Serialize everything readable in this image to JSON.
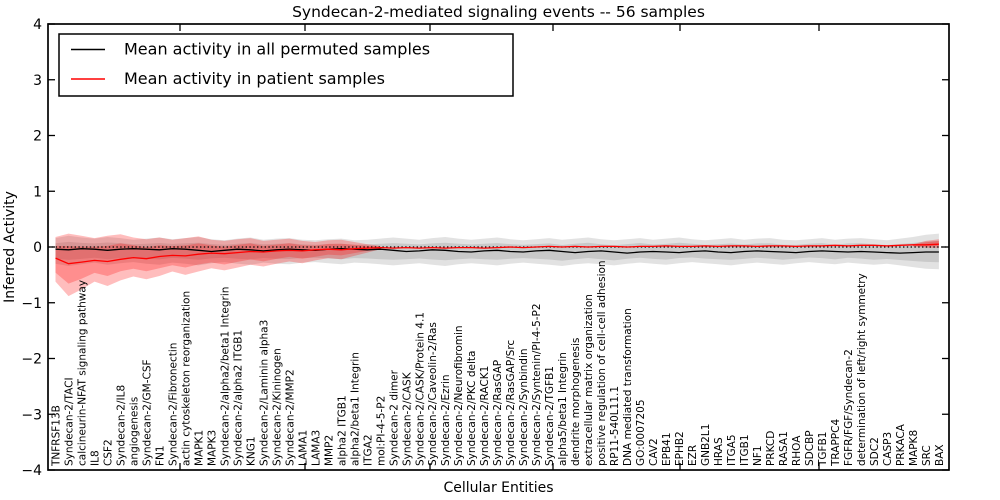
{
  "figure": {
    "title": "Syndecan-2-mediated signaling events -- 56 samples",
    "xlabel": "Cellular Entities",
    "ylabel": "Inferred Activity"
  },
  "chart_data": {
    "type": "line",
    "title": "Syndecan-2-mediated signaling events -- 56 samples",
    "xlabel": "Cellular Entities",
    "ylabel": "Inferred Activity",
    "ylim": [
      -4,
      4
    ],
    "yticks": [
      "4",
      "3",
      "2",
      "1",
      "0",
      "−1",
      "−2",
      "−3",
      "−4"
    ],
    "ytick_values": [
      4,
      3,
      2,
      1,
      0,
      -1,
      -2,
      -3,
      -4
    ],
    "grid": false,
    "legend_position": "upper-left",
    "zero_line": 0,
    "categories": [
      "TNFRSF13B",
      "Syndecan-2/TACI",
      "calcineurin-NFAT signaling pathway",
      "IL8",
      "CSF2",
      "Syndecan-2/IL8",
      "angiogenesis",
      "Syndecan-2/GM-CSF",
      "FN1",
      "Syndecan-2/Fibronectin",
      "actin cytoskeleton reorganization",
      "MAPK1",
      "MAPK3",
      "Syndecan-2/alpha2/beta1 Integrin",
      "Syndecan-2/alpha2 ITGB1",
      "KNG1",
      "Syndecan-2/Laminin alpha3",
      "Syndecan-2/Kininogen",
      "Syndecan-2/MMP2",
      "LAMA1",
      "LAMA3",
      "MMP2",
      "alpha2 ITGB1",
      "alpha2/beta1 Integrin",
      "ITGA2",
      "mol:PI-4-5-P2",
      "Syndecan-2 dimer",
      "Syndecan-2/CASK",
      "Syndecan-2/CASK/Protein 4.1",
      "Syndecan-2/Caveolin-2/Ras",
      "Syndecan-2/Ezrin",
      "Syndecan-2/Neurofibromin",
      "Syndecan-2/PKC delta",
      "Syndecan-2/RACK1",
      "Syndecan-2/RasGAP",
      "Syndecan-2/RasGAP/Src",
      "Syndecan-2/Synbindin",
      "Syndecan-2/Syntenin/PI-4-5-P2",
      "Syndecan-2/TGFB1",
      "alpha5/beta1 Integrin",
      "dendrite morphogenesis",
      "extracellular matrix organization",
      "positive regulation of cell-cell adhesion",
      "RP11-540L11.1",
      "DNA mediated transformation",
      "GO:0007205",
      "CAV2",
      "EPB41",
      "EPHB2",
      "EZR",
      "GNB2L1",
      "HRAS",
      "ITGA5",
      "ITGB1",
      "NF1",
      "PRKCD",
      "RASA1",
      "RHOA",
      "SDCBP",
      "TGFB1",
      "TRAPPC4",
      "FGFR/FGF/Syndecan-2",
      "determination of left/right symmetry",
      "SDC2",
      "CASP3",
      "PRKACA",
      "MAPK8",
      "SRC",
      "BAX"
    ],
    "series": [
      {
        "name": "permuted",
        "label": "Mean activity in all permuted samples",
        "color": "#000000",
        "values": [
          -0.04,
          -0.05,
          -0.03,
          -0.04,
          -0.06,
          -0.04,
          -0.03,
          -0.04,
          -0.05,
          -0.03,
          -0.04,
          -0.06,
          -0.08,
          -0.06,
          -0.04,
          -0.05,
          -0.07,
          -0.05,
          -0.04,
          -0.05,
          -0.06,
          -0.04,
          -0.03,
          -0.04,
          -0.05,
          -0.04,
          -0.06,
          -0.08,
          -0.07,
          -0.05,
          -0.06,
          -0.08,
          -0.09,
          -0.07,
          -0.06,
          -0.08,
          -0.09,
          -0.07,
          -0.06,
          -0.08,
          -0.1,
          -0.08,
          -0.07,
          -0.09,
          -0.11,
          -0.09,
          -0.08,
          -0.09,
          -0.1,
          -0.08,
          -0.07,
          -0.09,
          -0.1,
          -0.08,
          -0.07,
          -0.08,
          -0.09,
          -0.1,
          -0.08,
          -0.07,
          -0.08,
          -0.09,
          -0.08,
          -0.09,
          -0.1,
          -0.11,
          -0.1,
          -0.09,
          -0.09
        ]
      },
      {
        "name": "patient",
        "label": "Mean activity in patient samples",
        "color": "#ff0000",
        "values": [
          -0.2,
          -0.3,
          -0.27,
          -0.24,
          -0.26,
          -0.22,
          -0.19,
          -0.21,
          -0.17,
          -0.15,
          -0.16,
          -0.13,
          -0.11,
          -0.12,
          -0.1,
          -0.08,
          -0.09,
          -0.07,
          -0.06,
          -0.07,
          -0.05,
          -0.04,
          -0.05,
          -0.03,
          -0.02,
          -0.01,
          -0.02,
          -0.01,
          -0.02,
          -0.01,
          -0.02,
          -0.01,
          -0.01,
          -0.02,
          -0.01,
          0.0,
          -0.01,
          0.0,
          0.01,
          0.0,
          0.01,
          0.0,
          0.01,
          0.01,
          0.0,
          0.01,
          0.01,
          0.02,
          0.01,
          0.01,
          0.02,
          0.01,
          0.02,
          0.02,
          0.01,
          0.02,
          0.02,
          0.01,
          0.02,
          0.02,
          0.03,
          0.02,
          0.03,
          0.03,
          0.02,
          0.03,
          0.04,
          0.04,
          0.05
        ]
      }
    ],
    "bands": [
      {
        "name": "permuted-band",
        "color": "#000000",
        "opacity": 0.115,
        "start": 0,
        "upper": [
          0.16,
          0.2,
          0.17,
          0.15,
          0.18,
          0.16,
          0.13,
          0.15,
          0.17,
          0.14,
          0.16,
          0.18,
          0.14,
          0.12,
          0.15,
          0.17,
          0.13,
          0.15,
          0.16,
          0.13,
          0.12,
          0.14,
          0.15,
          0.12,
          0.13,
          0.15,
          0.17,
          0.15,
          0.13,
          0.16,
          0.18,
          0.15,
          0.13,
          0.15,
          0.17,
          0.14,
          0.12,
          0.14,
          0.16,
          0.13,
          0.15,
          0.17,
          0.14,
          0.12,
          0.14,
          0.16,
          0.13,
          0.15,
          0.17,
          0.14,
          0.12,
          0.14,
          0.16,
          0.13,
          0.15,
          0.16,
          0.13,
          0.12,
          0.14,
          0.16,
          0.13,
          0.15,
          0.16,
          0.14,
          0.12,
          0.15,
          0.18,
          0.22,
          0.24
        ],
        "lower": [
          -0.3,
          -0.34,
          -0.31,
          -0.28,
          -0.32,
          -0.29,
          -0.27,
          -0.3,
          -0.32,
          -0.28,
          -0.3,
          -0.33,
          -0.29,
          -0.27,
          -0.3,
          -0.32,
          -0.28,
          -0.3,
          -0.31,
          -0.28,
          -0.27,
          -0.29,
          -0.31,
          -0.28,
          -0.29,
          -0.31,
          -0.33,
          -0.31,
          -0.29,
          -0.32,
          -0.34,
          -0.31,
          -0.29,
          -0.31,
          -0.33,
          -0.3,
          -0.28,
          -0.3,
          -0.32,
          -0.34,
          -0.31,
          -0.29,
          -0.31,
          -0.33,
          -0.3,
          -0.28,
          -0.3,
          -0.32,
          -0.29,
          -0.27,
          -0.29,
          -0.31,
          -0.33,
          -0.3,
          -0.28,
          -0.3,
          -0.32,
          -0.29,
          -0.27,
          -0.29,
          -0.31,
          -0.28,
          -0.3,
          -0.32,
          -0.3,
          -0.33,
          -0.36,
          -0.39,
          -0.4
        ]
      },
      {
        "name": "patient-band",
        "color": "#ff0000",
        "opacity": 0.26,
        "start": 0,
        "upper": [
          0.18,
          0.24,
          0.2,
          0.16,
          0.2,
          0.23,
          0.17,
          0.14,
          0.17,
          0.13,
          0.16,
          0.19,
          0.13,
          0.11,
          0.14,
          0.16,
          0.11,
          0.13,
          0.15,
          0.11,
          0.09,
          0.12,
          0.13,
          0.09,
          0.05,
          0.02
        ],
        "lower": [
          -0.62,
          -0.88,
          -0.76,
          -0.62,
          -0.7,
          -0.6,
          -0.53,
          -0.58,
          -0.52,
          -0.44,
          -0.5,
          -0.44,
          -0.38,
          -0.42,
          -0.37,
          -0.32,
          -0.35,
          -0.3,
          -0.26,
          -0.29,
          -0.24,
          -0.2,
          -0.22,
          -0.16,
          -0.1,
          -0.04
        ]
      },
      {
        "name": "patient-band-tail",
        "color": "#ff0000",
        "opacity": 0.26,
        "start": 66,
        "upper": [
          0.05,
          0.11,
          0.14
        ],
        "lower": [
          0.01,
          -0.01,
          -0.02
        ]
      }
    ]
  },
  "legend": {
    "entries": [
      {
        "label": "Mean activity in all permuted samples",
        "color": "#000000"
      },
      {
        "label": "Mean activity in patient samples",
        "color": "#ff0000"
      }
    ]
  },
  "colors": {
    "foreground": "#000000",
    "background": "#ffffff",
    "patient_line": "#ff0000",
    "permuted_line": "#000000"
  }
}
